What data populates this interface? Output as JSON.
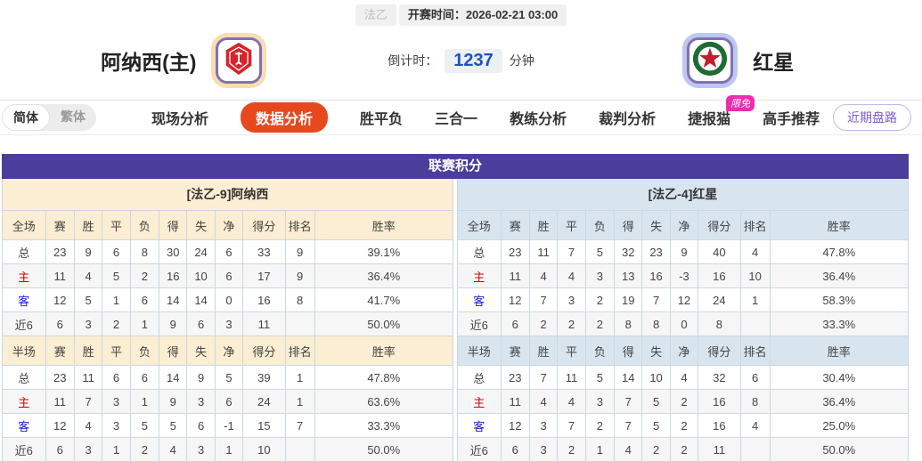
{
  "top_bar": {
    "league": "法乙",
    "kickoff_label": "开赛时间：",
    "kickoff_time": "2026-02-21 03:00"
  },
  "match": {
    "home_name": "阿纳西(主)",
    "away_name": "红星",
    "countdown_label": "倒计时：",
    "countdown_value": "1237",
    "countdown_unit": "分钟"
  },
  "nav": {
    "lang_simplified": "简体",
    "lang_traditional": "繁体",
    "tabs": [
      {
        "label": "现场分析",
        "active": false
      },
      {
        "label": "数据分析",
        "active": true
      },
      {
        "label": "胜平负",
        "active": false
      },
      {
        "label": "三合一",
        "active": false
      },
      {
        "label": "教练分析",
        "active": false
      },
      {
        "label": "裁判分析",
        "active": false
      },
      {
        "label": "捷报猫",
        "active": false,
        "badge": "限免"
      },
      {
        "label": "高手推荐",
        "active": false
      }
    ],
    "recent_button": "近期盘路"
  },
  "league_table": {
    "section_title": "联赛积分",
    "full_label": "全场",
    "half_label": "半场",
    "columns": [
      "赛",
      "胜",
      "平",
      "负",
      "得",
      "失",
      "净",
      "得分",
      "排名",
      "胜率"
    ],
    "row_labels": [
      {
        "text": "总",
        "type": "total"
      },
      {
        "text": "主",
        "type": "home"
      },
      {
        "text": "客",
        "type": "away"
      },
      {
        "text": "近6",
        "type": "recent"
      }
    ],
    "home": {
      "banner": "[法乙-9]阿纳西",
      "full": [
        [
          "23",
          "9",
          "6",
          "8",
          "30",
          "24",
          "6",
          "33",
          "9",
          "39.1%"
        ],
        [
          "11",
          "4",
          "5",
          "2",
          "16",
          "10",
          "6",
          "17",
          "9",
          "36.4%"
        ],
        [
          "12",
          "5",
          "1",
          "6",
          "14",
          "14",
          "0",
          "16",
          "8",
          "41.7%"
        ],
        [
          "6",
          "3",
          "2",
          "1",
          "9",
          "6",
          "3",
          "11",
          "",
          "50.0%"
        ]
      ],
      "half": [
        [
          "23",
          "11",
          "6",
          "6",
          "14",
          "9",
          "5",
          "39",
          "1",
          "47.8%"
        ],
        [
          "11",
          "7",
          "3",
          "1",
          "9",
          "3",
          "6",
          "24",
          "1",
          "63.6%"
        ],
        [
          "12",
          "4",
          "3",
          "5",
          "5",
          "6",
          "-1",
          "15",
          "7",
          "33.3%"
        ],
        [
          "6",
          "3",
          "1",
          "2",
          "4",
          "3",
          "1",
          "10",
          "",
          "50.0%"
        ]
      ]
    },
    "away": {
      "banner": "[法乙-4]红星",
      "full": [
        [
          "23",
          "11",
          "7",
          "5",
          "32",
          "23",
          "9",
          "40",
          "4",
          "47.8%"
        ],
        [
          "11",
          "4",
          "4",
          "3",
          "13",
          "16",
          "-3",
          "16",
          "10",
          "36.4%"
        ],
        [
          "12",
          "7",
          "3",
          "2",
          "19",
          "7",
          "12",
          "24",
          "1",
          "58.3%"
        ],
        [
          "6",
          "2",
          "2",
          "2",
          "8",
          "8",
          "0",
          "8",
          "",
          "33.3%"
        ]
      ],
      "half": [
        [
          "23",
          "7",
          "11",
          "5",
          "14",
          "10",
          "4",
          "32",
          "6",
          "30.4%"
        ],
        [
          "11",
          "4",
          "4",
          "3",
          "7",
          "5",
          "2",
          "16",
          "8",
          "36.4%"
        ],
        [
          "12",
          "3",
          "7",
          "2",
          "7",
          "5",
          "2",
          "16",
          "4",
          "25.0%"
        ],
        [
          "6",
          "3",
          "2",
          "1",
          "4",
          "2",
          "2",
          "11",
          "",
          "50.0%"
        ]
      ]
    }
  },
  "colors": {
    "accent": "#e8481e",
    "purple": "#4a3d9c",
    "badge": "#ee2cb1",
    "cd-blue": "#1b52c3",
    "home-bg": "#fbeed2",
    "away-bg": "#d9e5ee",
    "red": "#d40000",
    "blue": "#1a1acd",
    "stripe": "#f6f6f6",
    "border": "#c9d8e2",
    "recent": "#7a5fd0"
  }
}
